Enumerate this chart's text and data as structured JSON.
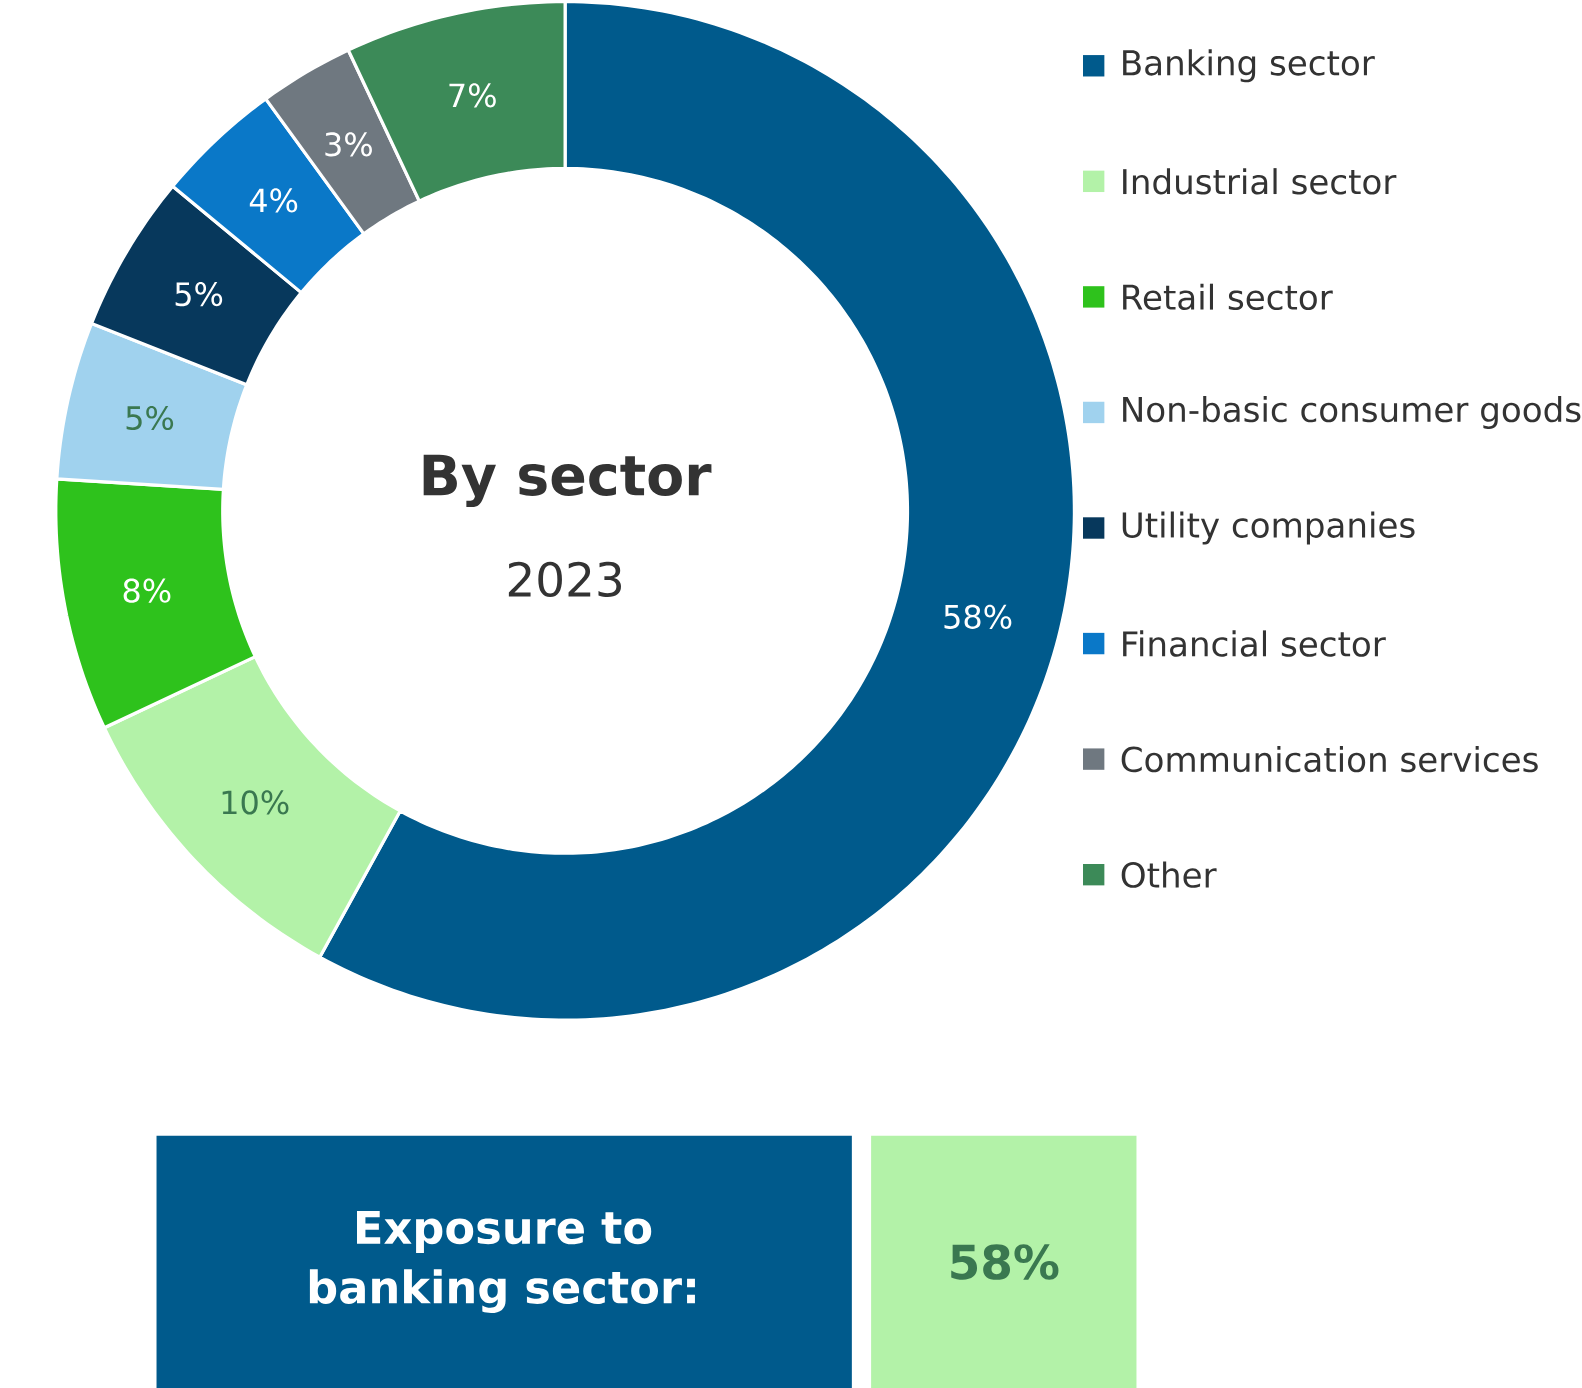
{
  "chart_data": {
    "type": "donut",
    "title": "By sector",
    "subtitle": "2023",
    "categories": [
      "Banking sector",
      "Industrial sector",
      "Retail sector",
      "Non-basic consumer goods",
      "Utility companies",
      "Financial sector",
      "Communication services",
      "Other"
    ],
    "values": [
      58,
      10,
      8,
      5,
      5,
      4,
      3,
      7
    ],
    "value_labels": [
      "58%",
      "10%",
      "8%",
      "5%",
      "5%",
      "4%",
      "3%",
      "7%"
    ],
    "colors": [
      "#005a8c",
      "#b3f2a8",
      "#2ec21c",
      "#a0d2ee",
      "#07385c",
      "#0a78c8",
      "#6f7880",
      "#3c8a58"
    ],
    "legend": "right",
    "annotations": [
      "Exposure to banking sector:",
      "58%"
    ]
  }
}
